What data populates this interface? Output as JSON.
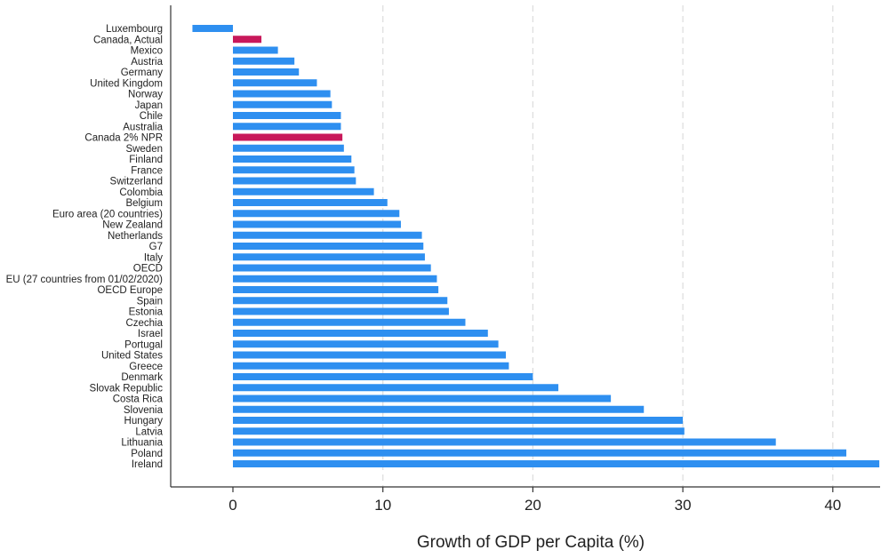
{
  "chart_data": {
    "type": "bar",
    "orientation": "horizontal",
    "title": "",
    "xlabel": "Growth of GDP per Capita (%)",
    "ylabel": "",
    "xlim": [
      -4,
      43
    ],
    "xticks": [
      0,
      10,
      20,
      30,
      40
    ],
    "grid": "vertical dashed",
    "colors": {
      "default": "#2e8ff0",
      "highlight": "#c8185a"
    },
    "categories": [
      "Luxembourg",
      "Canada, Actual",
      "Mexico",
      "Austria",
      "Germany",
      "United Kingdom",
      "Norway",
      "Japan",
      "Chile",
      "Australia",
      "Canada 2% NPR",
      "Sweden",
      "Finland",
      "France",
      "Switzerland",
      "Colombia",
      "Belgium",
      "Euro area (20 countries)",
      "New Zealand",
      "Netherlands",
      "G7",
      "Italy",
      "OECD",
      "EU (27 countries from 01/02/2020)",
      "OECD Europe",
      "Spain",
      "Estonia",
      "Czechia",
      "Israel",
      "Portugal",
      "United States",
      "Greece",
      "Denmark",
      "Slovak Republic",
      "Costa Rica",
      "Slovenia",
      "Hungary",
      "Latvia",
      "Lithuania",
      "Poland",
      "Ireland"
    ],
    "values": [
      -2.7,
      1.9,
      3.0,
      4.1,
      4.4,
      5.6,
      6.5,
      6.6,
      7.2,
      7.2,
      7.3,
      7.4,
      7.9,
      8.1,
      8.2,
      9.4,
      10.3,
      11.1,
      11.2,
      12.6,
      12.7,
      12.8,
      13.2,
      13.6,
      13.7,
      14.3,
      14.4,
      15.5,
      17.0,
      17.7,
      18.2,
      18.4,
      20.0,
      21.7,
      25.2,
      27.4,
      30.0,
      30.1,
      36.2,
      40.9,
      43.1
    ],
    "highlighted": [
      "Canada, Actual",
      "Canada 2% NPR"
    ]
  }
}
